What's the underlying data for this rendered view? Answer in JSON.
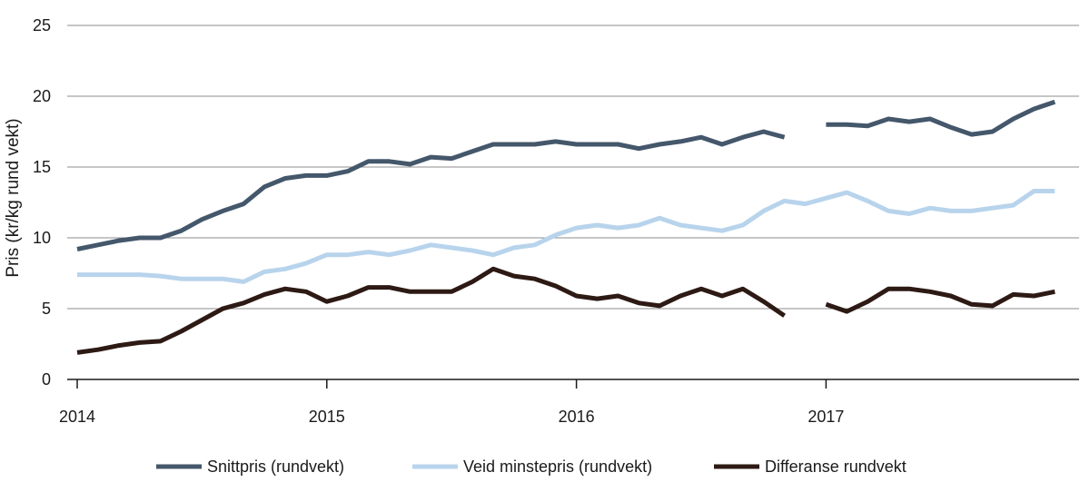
{
  "chart_data": {
    "type": "line",
    "xlabel": "",
    "ylabel": "Pris (kr/kg rund vekt)",
    "ylim": [
      0,
      25
    ],
    "yticks": [
      "0",
      "5",
      "10",
      "15",
      "20",
      "25"
    ],
    "x_tick_labels": [
      "2014",
      "2015",
      "2016",
      "2017"
    ],
    "grid": "horizontal",
    "legend_position": "bottom",
    "months": [
      "2014-01",
      "2014-02",
      "2014-03",
      "2014-04",
      "2014-05",
      "2014-06",
      "2014-07",
      "2014-08",
      "2014-09",
      "2014-10",
      "2014-11",
      "2014-12",
      "2015-01",
      "2015-02",
      "2015-03",
      "2015-04",
      "2015-05",
      "2015-06",
      "2015-07",
      "2015-08",
      "2015-09",
      "2015-10",
      "2015-11",
      "2015-12",
      "2016-01",
      "2016-02",
      "2016-03",
      "2016-04",
      "2016-05",
      "2016-06",
      "2016-07",
      "2016-08",
      "2016-09",
      "2016-10",
      "2016-11",
      "2016-12",
      "2017-01",
      "2017-02",
      "2017-03",
      "2017-04",
      "2017-05",
      "2017-06",
      "2017-07",
      "2017-08",
      "2017-09",
      "2017-10",
      "2017-11",
      "2017-12"
    ],
    "series": [
      {
        "name": "Snittpris (rundvekt)",
        "color": "#44576b",
        "values": [
          9.2,
          9.5,
          9.8,
          10.0,
          10.0,
          10.5,
          11.3,
          11.9,
          12.4,
          13.6,
          14.2,
          14.4,
          14.4,
          14.7,
          15.4,
          15.4,
          15.2,
          15.7,
          15.6,
          16.1,
          16.6,
          16.6,
          16.6,
          16.8,
          16.6,
          16.6,
          16.6,
          16.3,
          16.6,
          16.8,
          17.1,
          16.6,
          17.1,
          17.5,
          17.1,
          null,
          18.0,
          18.0,
          17.9,
          18.4,
          18.2,
          18.4,
          17.8,
          17.3,
          17.5,
          18.4,
          19.1,
          19.6
        ]
      },
      {
        "name": "Veid minstepris (rundvekt)",
        "color": "#b8d4ec",
        "values": [
          7.4,
          7.4,
          7.4,
          7.4,
          7.3,
          7.1,
          7.1,
          7.1,
          6.9,
          7.6,
          7.8,
          8.2,
          8.8,
          8.8,
          9.0,
          8.8,
          9.1,
          9.5,
          9.3,
          9.1,
          8.8,
          9.3,
          9.5,
          10.2,
          10.7,
          10.9,
          10.7,
          10.9,
          11.4,
          10.9,
          10.7,
          10.5,
          10.9,
          11.9,
          12.6,
          12.4,
          12.8,
          13.2,
          12.6,
          11.9,
          11.7,
          12.1,
          11.9,
          11.9,
          12.1,
          12.3,
          13.3,
          13.3
        ]
      },
      {
        "name": "Differanse rundvekt",
        "color": "#2d1a14",
        "values": [
          1.9,
          2.1,
          2.4,
          2.6,
          2.7,
          3.4,
          4.2,
          5.0,
          5.4,
          6.0,
          6.4,
          6.2,
          5.5,
          5.9,
          6.5,
          6.5,
          6.2,
          6.2,
          6.2,
          6.9,
          7.8,
          7.3,
          7.1,
          6.6,
          5.9,
          5.7,
          5.9,
          5.4,
          5.2,
          5.9,
          6.4,
          5.9,
          6.4,
          5.5,
          4.5,
          null,
          5.3,
          4.8,
          5.5,
          6.4,
          6.4,
          6.2,
          5.9,
          5.3,
          5.2,
          6.0,
          5.9,
          6.2
        ]
      }
    ]
  }
}
